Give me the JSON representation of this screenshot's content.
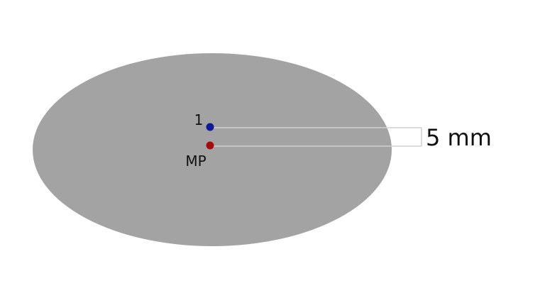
{
  "labels": {
    "point_one": "1",
    "midpoint": "MP",
    "distance": "5 mm"
  },
  "colors": {
    "ellipse": "#a3a3a3",
    "point_one": "#10189a",
    "midpoint": "#a50d0d",
    "guide_line": "#d0d0d0"
  }
}
